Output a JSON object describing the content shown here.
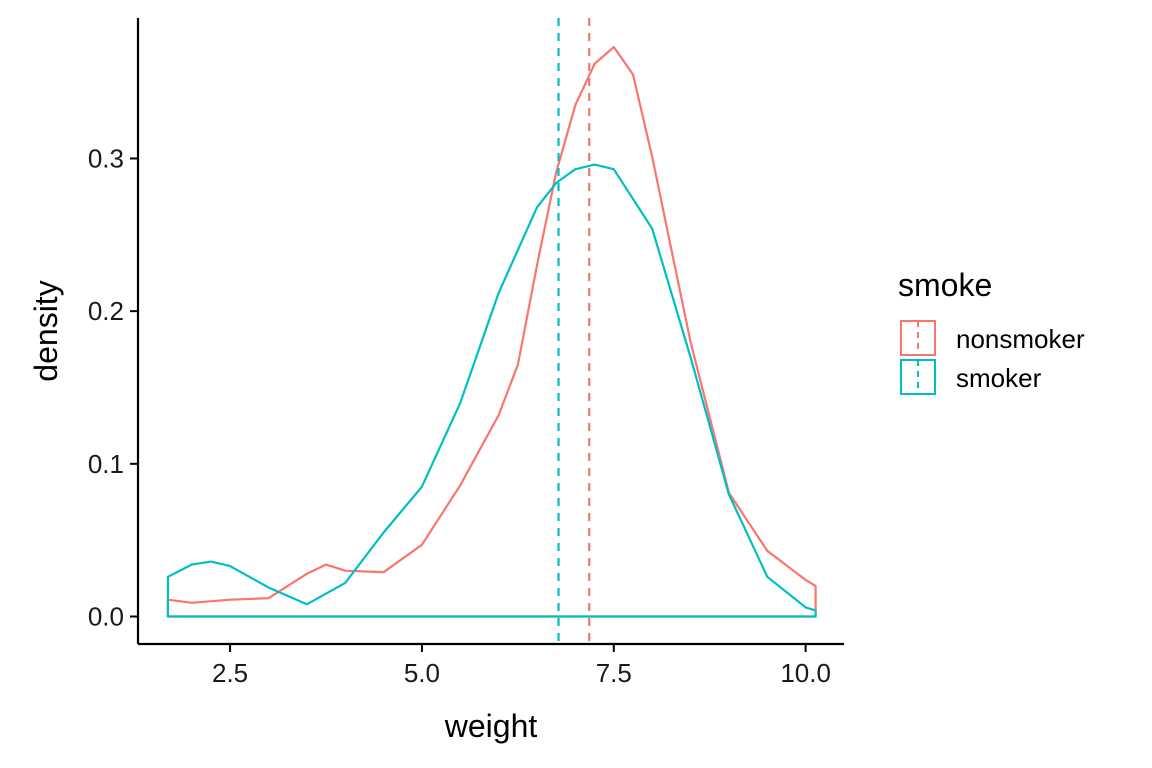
{
  "chart_data": {
    "type": "area",
    "xlabel": "weight",
    "ylabel": "density",
    "xlim": [
      1.3,
      10.5
    ],
    "ylim": [
      -0.018,
      0.392
    ],
    "xticks": [
      2.5,
      5.0,
      7.5,
      10.0
    ],
    "xtick_labels": [
      "2.5",
      "5.0",
      "7.5",
      "10.0"
    ],
    "yticks": [
      0.0,
      0.1,
      0.2,
      0.3
    ],
    "ytick_labels": [
      "0.0",
      "0.1",
      "0.2",
      "0.3"
    ],
    "grid": false,
    "legend": {
      "title": "smoke",
      "placement": "right"
    },
    "series": [
      {
        "name": "nonsmoker",
        "color": "#F8766D",
        "mean": 7.18,
        "x": [
          1.69,
          2.0,
          2.5,
          3.0,
          3.5,
          3.75,
          4.0,
          4.5,
          5.0,
          5.5,
          6.0,
          6.25,
          6.5,
          6.75,
          7.0,
          7.25,
          7.5,
          7.75,
          8.0,
          8.5,
          9.0,
          9.5,
          10.0,
          10.13
        ],
        "values": [
          0.011,
          0.009,
          0.011,
          0.012,
          0.028,
          0.034,
          0.03,
          0.029,
          0.047,
          0.086,
          0.132,
          0.165,
          0.23,
          0.291,
          0.335,
          0.362,
          0.373,
          0.355,
          0.301,
          0.18,
          0.081,
          0.043,
          0.024,
          0.02
        ]
      },
      {
        "name": "smoker",
        "color": "#00BFC4",
        "mean": 6.78,
        "x": [
          1.69,
          2.0,
          2.25,
          2.5,
          3.0,
          3.5,
          4.0,
          4.5,
          5.0,
          5.5,
          6.0,
          6.5,
          6.75,
          7.0,
          7.25,
          7.5,
          8.0,
          8.5,
          9.0,
          9.5,
          10.0,
          10.13
        ],
        "values": [
          0.026,
          0.034,
          0.036,
          0.033,
          0.019,
          0.008,
          0.022,
          0.055,
          0.085,
          0.14,
          0.212,
          0.268,
          0.284,
          0.293,
          0.296,
          0.293,
          0.254,
          0.17,
          0.08,
          0.026,
          0.006,
          0.004
        ]
      }
    ]
  }
}
